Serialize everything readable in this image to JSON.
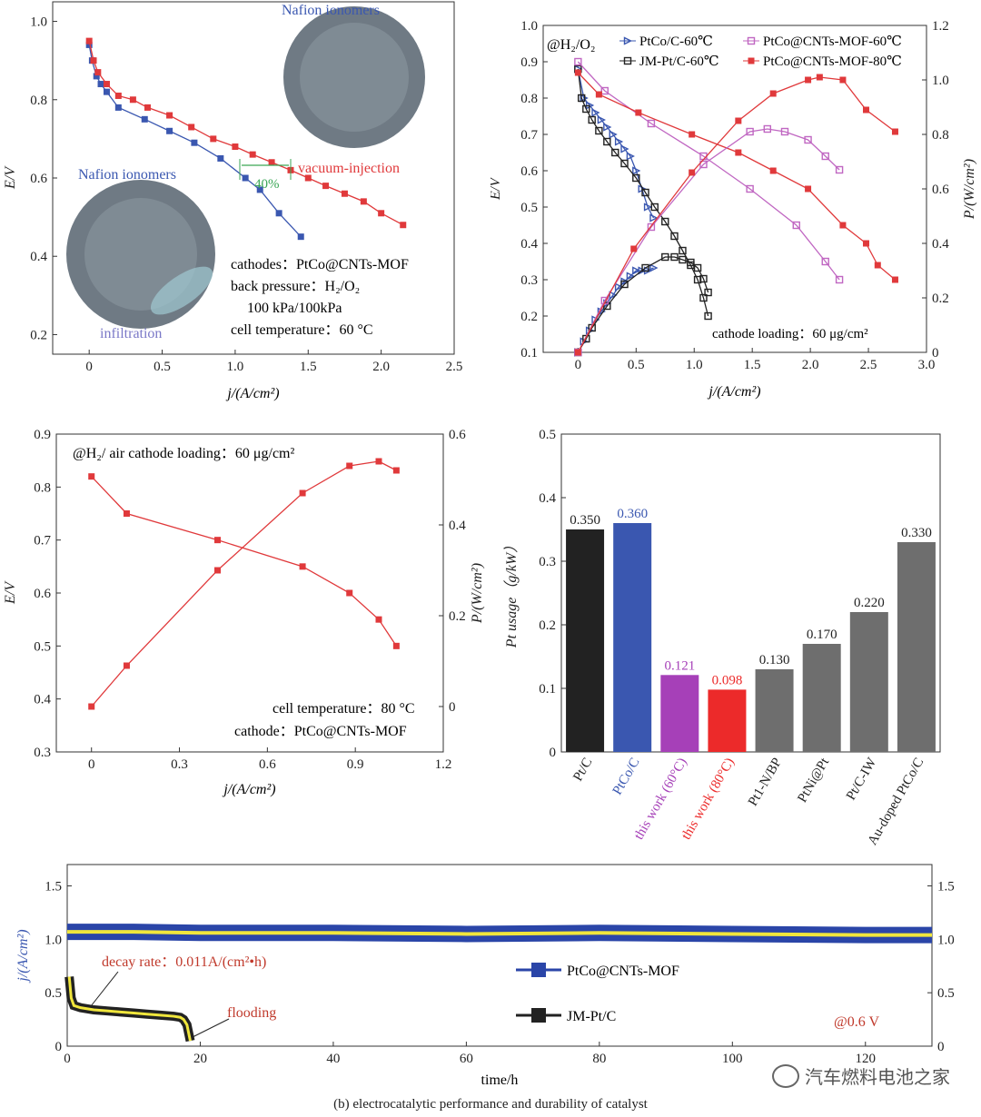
{
  "colors": {
    "blue": "#3a57b0",
    "red": "#e0393b",
    "pink": "#c067c2",
    "black": "#222222",
    "gray": "#6e6e6e",
    "purple": "#a640b8",
    "bar_red": "#ec2a2a",
    "yellow": "#f0e63c",
    "navy_band": "#2a45a8",
    "green": "#3aa655"
  },
  "caption": "(b) electrocatalytic performance and durability of catalyst",
  "watermark": "汽车燃料电池之家",
  "chart_data": [
    {
      "type": "line",
      "id": "panel-a",
      "xlabel": "j/(A/cm²)",
      "ylabel": "E/V",
      "xlim": [
        -0.25,
        2.5
      ],
      "ylim": [
        0.15,
        1.05
      ],
      "xticks": [
        "0",
        "0.5",
        "1.0",
        "1.5",
        "2.0",
        "2.5"
      ],
      "xtick_values": [
        0,
        0.5,
        1.0,
        1.5,
        2.0,
        2.5
      ],
      "yticks": [
        "0.2",
        "0.4",
        "0.6",
        "0.8",
        "1.0"
      ],
      "ytick_values": [
        0.2,
        0.4,
        0.6,
        0.8,
        1.0
      ],
      "series": [
        {
          "color_key": "blue",
          "x": [
            0.0,
            0.02,
            0.05,
            0.08,
            0.12,
            0.2,
            0.38,
            0.55,
            0.72,
            0.9,
            1.07,
            1.17,
            1.3,
            1.45
          ],
          "y": [
            0.94,
            0.9,
            0.86,
            0.84,
            0.82,
            0.78,
            0.75,
            0.72,
            0.69,
            0.65,
            0.6,
            0.57,
            0.51,
            0.45
          ]
        },
        {
          "color_key": "red",
          "x": [
            0.0,
            0.03,
            0.06,
            0.12,
            0.2,
            0.3,
            0.4,
            0.55,
            0.7,
            0.85,
            1.0,
            1.12,
            1.25,
            1.38,
            1.5,
            1.62,
            1.75,
            1.88,
            2.0,
            2.15
          ],
          "y": [
            0.95,
            0.9,
            0.87,
            0.84,
            0.81,
            0.8,
            0.78,
            0.76,
            0.73,
            0.7,
            0.68,
            0.66,
            0.64,
            0.62,
            0.6,
            0.58,
            0.56,
            0.54,
            0.51,
            0.48
          ]
        }
      ],
      "annotations": {
        "nafion_top": "Nafion ionomers",
        "nafion_left": "Nafion ionomers",
        "vacuum": "vacuum-injection",
        "infiltration": "infiltration",
        "gap": "40%",
        "info": [
          "cathodes：PtCo@CNTs-MOF",
          "back pressure：H₂/O₂",
          "100 kPa/100kPa",
          "cell temperature：60 °C"
        ]
      }
    },
    {
      "type": "line",
      "id": "panel-b",
      "xlabel": "j/(A/cm²)",
      "ylabel": "E/V",
      "y2label": "P/(W/cm²)",
      "xlim": [
        -0.3,
        3.0
      ],
      "ylim": [
        0.1,
        1.0
      ],
      "y2lim": [
        0,
        1.2
      ],
      "xticks": [
        "0",
        "0.5",
        "1.0",
        "1.5",
        "2.0",
        "2.5",
        "3.0"
      ],
      "xtick_values": [
        0,
        0.5,
        1.0,
        1.5,
        2.0,
        2.5,
        3.0
      ],
      "yticks": [
        "0.1",
        "0.2",
        "0.3",
        "0.4",
        "0.5",
        "0.6",
        "0.7",
        "0.8",
        "0.9",
        "1.0"
      ],
      "ytick_values": [
        0.1,
        0.2,
        0.3,
        0.4,
        0.5,
        0.6,
        0.7,
        0.8,
        0.9,
        1.0
      ],
      "y2ticks": [
        "0",
        "0.2",
        "0.4",
        "0.6",
        "0.8",
        "1.0",
        "1.2"
      ],
      "y2tick_values": [
        0,
        0.2,
        0.4,
        0.6,
        0.8,
        1.0,
        1.2
      ],
      "legend": [
        "PtCo/C-60℃",
        "PtCo@CNTs-MOF-60℃",
        "JM-Pt/C-60℃",
        "PtCo@CNTs-MOF-80℃"
      ],
      "condition": "@H₂/O₂",
      "note": "cathode loading：60 μg/cm²",
      "series": [
        {
          "name": "PtCo/C-60℃",
          "color_key": "blue",
          "marker": "triangle",
          "axis": "left",
          "x": [
            0.0,
            0.05,
            0.1,
            0.15,
            0.2,
            0.25,
            0.3,
            0.35,
            0.4,
            0.45,
            0.5,
            0.55,
            0.6,
            0.65
          ],
          "y": [
            0.88,
            0.8,
            0.78,
            0.76,
            0.74,
            0.72,
            0.7,
            0.68,
            0.66,
            0.64,
            0.6,
            0.55,
            0.5,
            0.47
          ]
        },
        {
          "name": "JM-Pt/C-60℃",
          "color_key": "black",
          "marker": "square-open",
          "axis": "left",
          "x": [
            0.0,
            0.03,
            0.07,
            0.12,
            0.18,
            0.25,
            0.32,
            0.4,
            0.5,
            0.58,
            0.66,
            0.75,
            0.83,
            0.9,
            0.97,
            1.03,
            1.08,
            1.12
          ],
          "y": [
            0.88,
            0.8,
            0.77,
            0.74,
            0.71,
            0.68,
            0.65,
            0.62,
            0.58,
            0.54,
            0.5,
            0.46,
            0.42,
            0.38,
            0.34,
            0.3,
            0.25,
            0.2
          ]
        },
        {
          "name": "PtCo@CNTs-MOF-60℃",
          "color_key": "pink",
          "marker": "square-open",
          "axis": "left",
          "x": [
            0.0,
            0.23,
            0.63,
            1.08,
            1.48,
            1.88,
            2.13,
            2.25
          ],
          "y": [
            0.9,
            0.82,
            0.73,
            0.64,
            0.55,
            0.45,
            0.35,
            0.3
          ]
        },
        {
          "name": "PtCo@CNTs-MOF-80℃",
          "color_key": "red",
          "marker": "square",
          "axis": "left",
          "x": [
            0.0,
            0.18,
            0.52,
            0.98,
            1.38,
            1.68,
            1.98,
            2.28,
            2.48,
            2.58,
            2.73
          ],
          "y": [
            0.87,
            0.81,
            0.76,
            0.7,
            0.65,
            0.6,
            0.55,
            0.45,
            0.4,
            0.34,
            0.3
          ]
        },
        {
          "name": "PtCo/C-60℃ P",
          "color_key": "blue",
          "marker": "triangle",
          "axis": "right",
          "x": [
            0.0,
            0.05,
            0.1,
            0.15,
            0.2,
            0.25,
            0.3,
            0.35,
            0.4,
            0.45,
            0.5,
            0.55,
            0.6,
            0.65
          ],
          "y": [
            0.0,
            0.04,
            0.08,
            0.12,
            0.15,
            0.18,
            0.21,
            0.24,
            0.26,
            0.28,
            0.3,
            0.3,
            0.3,
            0.31
          ]
        },
        {
          "name": "JM-Pt/C-60℃ P",
          "color_key": "black",
          "marker": "square-open",
          "axis": "right",
          "x": [
            0.0,
            0.07,
            0.12,
            0.25,
            0.4,
            0.58,
            0.75,
            0.83,
            0.9,
            0.97,
            1.03,
            1.08,
            1.12
          ],
          "y": [
            0.0,
            0.05,
            0.09,
            0.17,
            0.25,
            0.31,
            0.35,
            0.35,
            0.34,
            0.33,
            0.31,
            0.27,
            0.22
          ]
        },
        {
          "name": "PtCo@CNTs-MOF-60℃ P",
          "color_key": "pink",
          "marker": "square-open",
          "axis": "right",
          "x": [
            0.0,
            0.23,
            0.63,
            1.08,
            1.48,
            1.63,
            1.78,
            1.98,
            2.13,
            2.25
          ],
          "y": [
            0.0,
            0.19,
            0.46,
            0.69,
            0.81,
            0.82,
            0.81,
            0.78,
            0.72,
            0.67
          ]
        },
        {
          "name": "PtCo@CNTs-MOF-80℃ P",
          "color_key": "red",
          "marker": "square",
          "axis": "right",
          "x": [
            0.0,
            0.48,
            0.98,
            1.38,
            1.68,
            1.98,
            2.08,
            2.28,
            2.48,
            2.73
          ],
          "y": [
            0.0,
            0.38,
            0.66,
            0.85,
            0.95,
            1.0,
            1.01,
            1.0,
            0.89,
            0.81
          ]
        }
      ]
    },
    {
      "type": "line",
      "id": "panel-c",
      "xlabel": "j/(A/cm²)",
      "ylabel": "E/V",
      "y2label": "P/(W/cm²)",
      "xlim": [
        -0.12,
        1.2
      ],
      "ylim": [
        0.3,
        0.9
      ],
      "y2lim": [
        -0.1,
        0.6
      ],
      "xticks": [
        "0",
        "0.3",
        "0.6",
        "0.9",
        "1.2"
      ],
      "xtick_values": [
        0,
        0.3,
        0.6,
        0.9,
        1.2
      ],
      "yticks": [
        "0.3",
        "0.4",
        "0.5",
        "0.6",
        "0.7",
        "0.8",
        "0.9"
      ],
      "ytick_values": [
        0.3,
        0.4,
        0.5,
        0.6,
        0.7,
        0.8,
        0.9
      ],
      "y2ticks": [
        "0",
        "0.2",
        "0.4",
        "0.6"
      ],
      "y2tick_values": [
        0,
        0.2,
        0.4,
        0.6
      ],
      "condition": "@H₂/ air cathode loading：60 μg/cm²",
      "info": [
        "cell temperature：80 °C",
        "cathode：PtCo@CNTs-MOF"
      ],
      "series": [
        {
          "color_key": "red",
          "axis": "left",
          "x": [
            0.0,
            0.12,
            0.43,
            0.72,
            0.88,
            0.98,
            1.04
          ],
          "y": [
            0.82,
            0.75,
            0.7,
            0.65,
            0.6,
            0.55,
            0.5
          ]
        },
        {
          "color_key": "red",
          "axis": "right",
          "x": [
            0.0,
            0.12,
            0.43,
            0.72,
            0.88,
            0.98,
            1.04
          ],
          "y": [
            0.0,
            0.09,
            0.3,
            0.47,
            0.53,
            0.54,
            0.52
          ]
        }
      ]
    },
    {
      "type": "bar",
      "id": "panel-d",
      "ylabel": "Pt usage（g/kW）",
      "ylim": [
        0,
        0.5
      ],
      "yticks": [
        "0",
        "0.1",
        "0.2",
        "0.3",
        "0.4",
        "0.5"
      ],
      "ytick_values": [
        0,
        0.1,
        0.2,
        0.3,
        0.4,
        0.5
      ],
      "categories": [
        "Pt/C",
        "PtCo/C",
        "this work (60°C)",
        "this work (80°C)",
        "Pt1-N/BP",
        "PtNi@Pt",
        "Pt/C-IW",
        "Au-doped PtCo/C"
      ],
      "values": [
        0.35,
        0.36,
        0.121,
        0.098,
        0.13,
        0.17,
        0.22,
        0.33
      ],
      "value_labels": [
        "0.350",
        "0.360",
        "0.121",
        "0.098",
        "0.130",
        "0.170",
        "0.220",
        "0.330"
      ],
      "bar_color_keys": [
        "black",
        "blue",
        "purple",
        "bar_red",
        "gray",
        "gray",
        "gray",
        "gray"
      ],
      "label_color_keys": [
        "black",
        "blue",
        "purple",
        "bar_red",
        "black",
        "black",
        "black",
        "black"
      ]
    },
    {
      "type": "line",
      "id": "panel-e",
      "xlabel": "time/h",
      "ylabel": "j/(A/cm²)",
      "xlim": [
        0,
        130
      ],
      "ylim": [
        0,
        1.7
      ],
      "xticks": [
        "0",
        "20",
        "40",
        "60",
        "80",
        "100",
        "120"
      ],
      "xtick_values": [
        0,
        20,
        40,
        60,
        80,
        100,
        120
      ],
      "yticks": [
        "0",
        "0.5",
        "1.0",
        "1.5"
      ],
      "ytick_values": [
        0,
        0.5,
        1.0,
        1.5
      ],
      "legend": [
        "PtCo@CNTs-MOF",
        "JM-Pt/C"
      ],
      "decay_label": "decay rate：0.011A/(cm²•h)",
      "flooding_label": "flooding",
      "condition": "@0.6 V",
      "series": [
        {
          "name": "PtCo@CNTs-MOF",
          "color_key": "navy_band",
          "x": [
            0,
            10,
            20,
            40,
            60,
            80,
            100,
            120,
            130
          ],
          "y": [
            1.07,
            1.07,
            1.06,
            1.06,
            1.05,
            1.06,
            1.05,
            1.04,
            1.04
          ]
        },
        {
          "name": "JM-Pt/C",
          "color_key": "black",
          "x": [
            0.3,
            0.6,
            1,
            2,
            4,
            6,
            8,
            10,
            12,
            14,
            16,
            17,
            17.5,
            18,
            18.5
          ],
          "y": [
            0.65,
            0.45,
            0.38,
            0.36,
            0.34,
            0.33,
            0.32,
            0.31,
            0.3,
            0.29,
            0.28,
            0.27,
            0.25,
            0.2,
            0.05
          ]
        }
      ]
    }
  ]
}
